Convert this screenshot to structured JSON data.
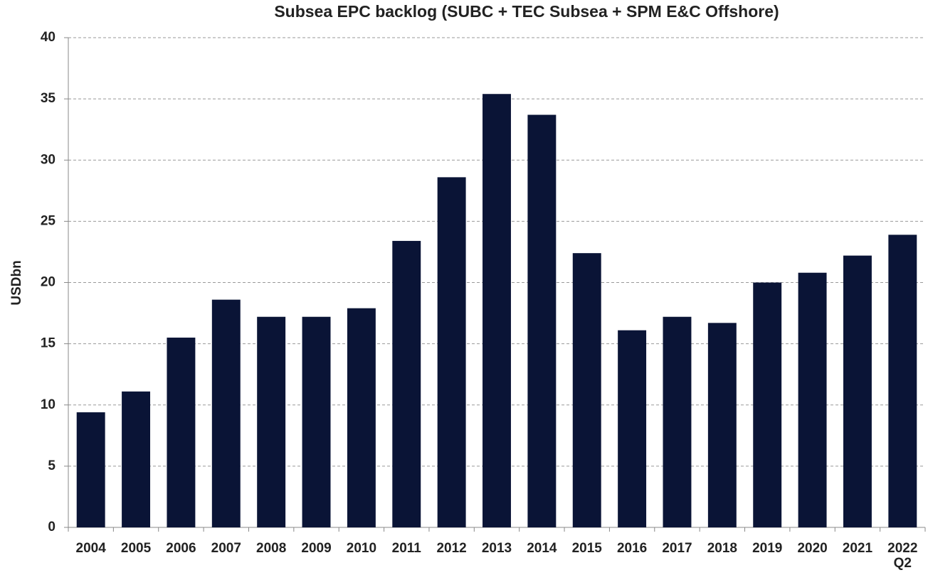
{
  "chart_data": {
    "type": "bar",
    "title": "Subsea EPC backlog (SUBC + TEC Subsea + SPM E&C Offshore)",
    "y_label": "USDbn",
    "categories": [
      "2004",
      "2005",
      "2006",
      "2007",
      "2008",
      "2009",
      "2010",
      "2011",
      "2012",
      "2013",
      "2014",
      "2015",
      "2016",
      "2017",
      "2018",
      "2019",
      "2020",
      "2021",
      "2022\nQ2"
    ],
    "values": [
      9.4,
      11.1,
      15.5,
      18.6,
      17.2,
      17.2,
      17.9,
      23.4,
      28.6,
      35.4,
      33.7,
      22.4,
      16.1,
      17.2,
      16.7,
      20.0,
      20.8,
      22.2,
      23.9
    ],
    "color": "#0a1436",
    "ylim": [
      0,
      40
    ],
    "yticks": [
      0,
      5,
      10,
      15,
      20,
      25,
      30,
      35,
      40
    ],
    "grid": true
  }
}
